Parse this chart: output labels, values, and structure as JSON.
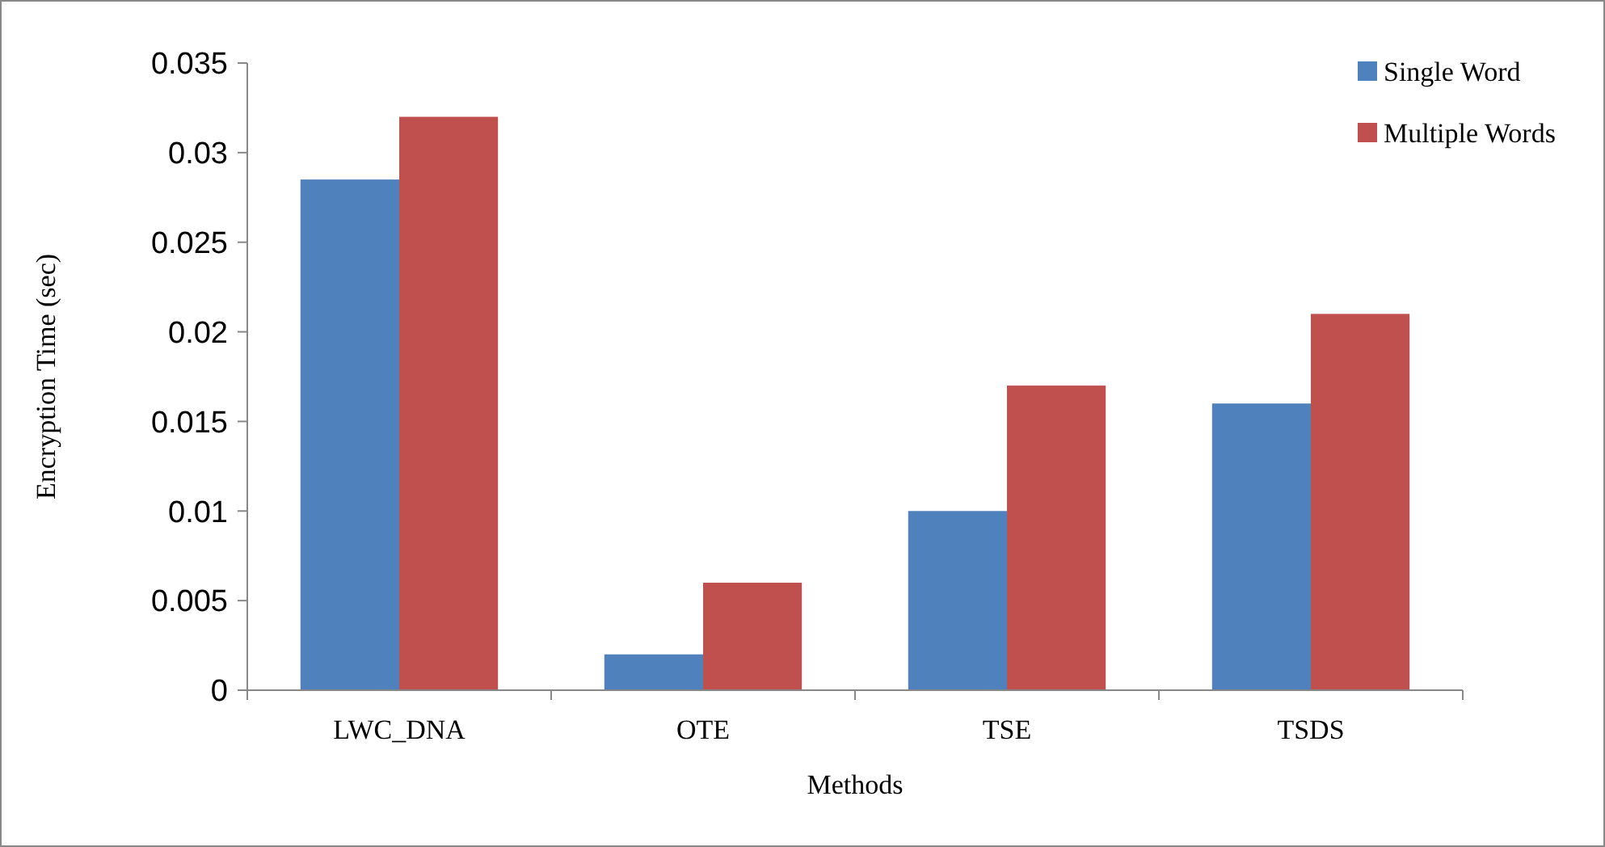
{
  "chart_data": {
    "type": "bar",
    "xlabel": "Methods",
    "ylabel": "Encryption Time (sec)",
    "categories": [
      "LWC_DNA",
      "OTE",
      "TSE",
      "TSDS"
    ],
    "series": [
      {
        "name": "Single Word",
        "color": "#4f81bd",
        "values": [
          0.0285,
          0.002,
          0.01,
          0.016
        ]
      },
      {
        "name": "Multiple Words",
        "color": "#c0504d",
        "values": [
          0.032,
          0.006,
          0.017,
          0.021
        ]
      }
    ],
    "ylim": [
      0,
      0.035
    ],
    "yticks": [
      0,
      0.005,
      0.01,
      0.015,
      0.02,
      0.025,
      0.03,
      0.035
    ],
    "grid": false,
    "legend": "top right"
  }
}
